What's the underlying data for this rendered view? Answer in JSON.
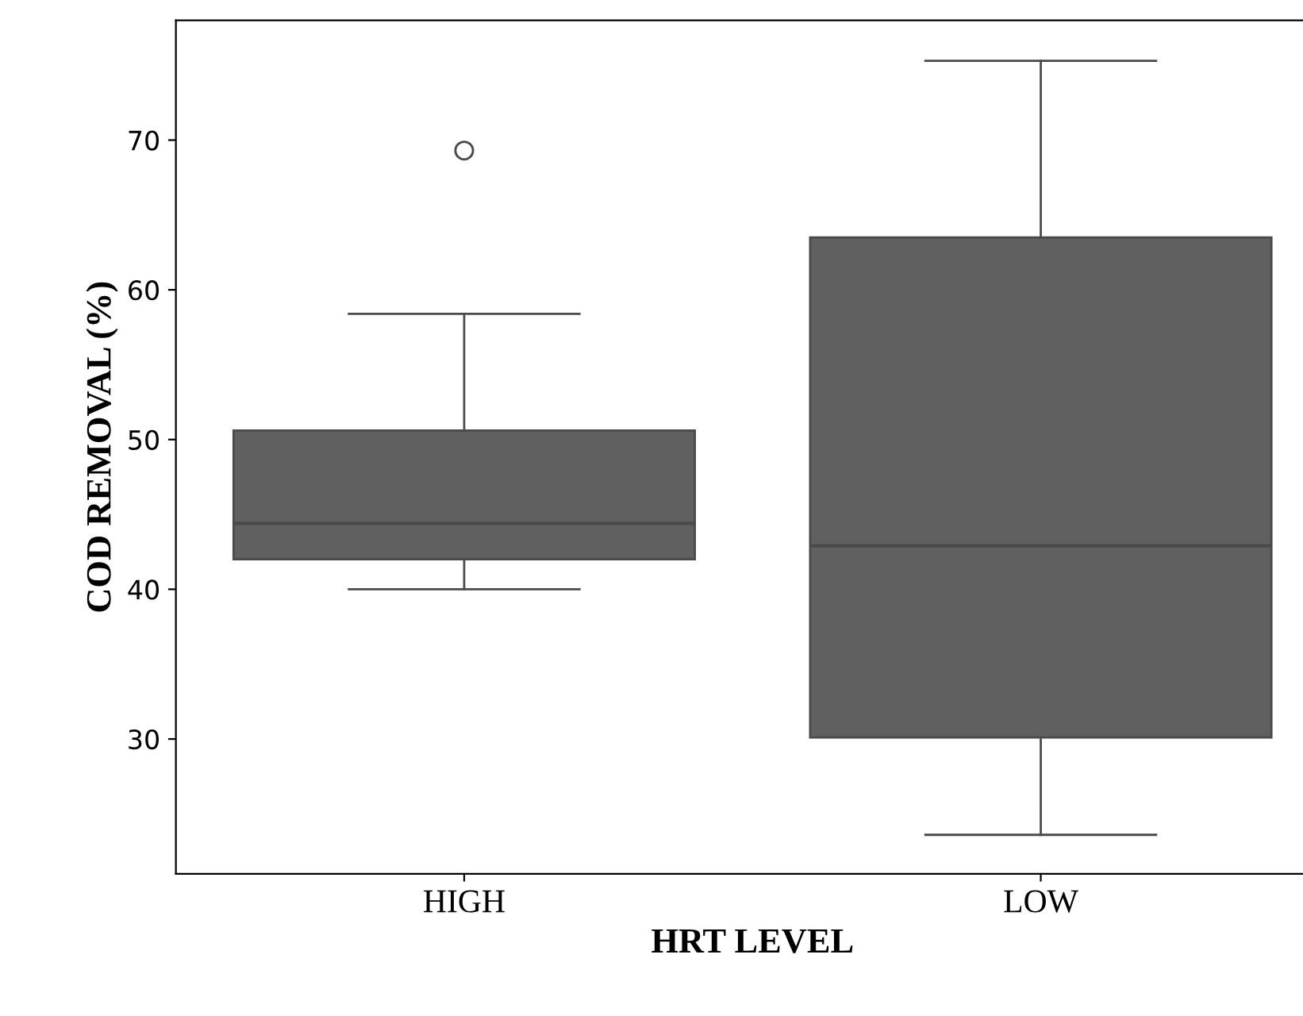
{
  "chart_data": {
    "type": "box",
    "xlabel": "HRT LEVEL",
    "ylabel": "COD REMOVAL (%)",
    "categories": [
      "HIGH",
      "LOW"
    ],
    "color": "#606060",
    "boxes": [
      {
        "low": 40.0,
        "q1": 42.0,
        "median": 44.4,
        "q3": 50.6,
        "high": 58.4,
        "outliers": [
          69.3
        ]
      },
      {
        "low": 23.6,
        "q1": 30.1,
        "median": 42.9,
        "q3": 63.5,
        "high": 75.3
      }
    ],
    "ylim": [
      21,
      78
    ],
    "yticks": [
      30,
      40,
      50,
      60,
      70
    ],
    "grid": false
  }
}
